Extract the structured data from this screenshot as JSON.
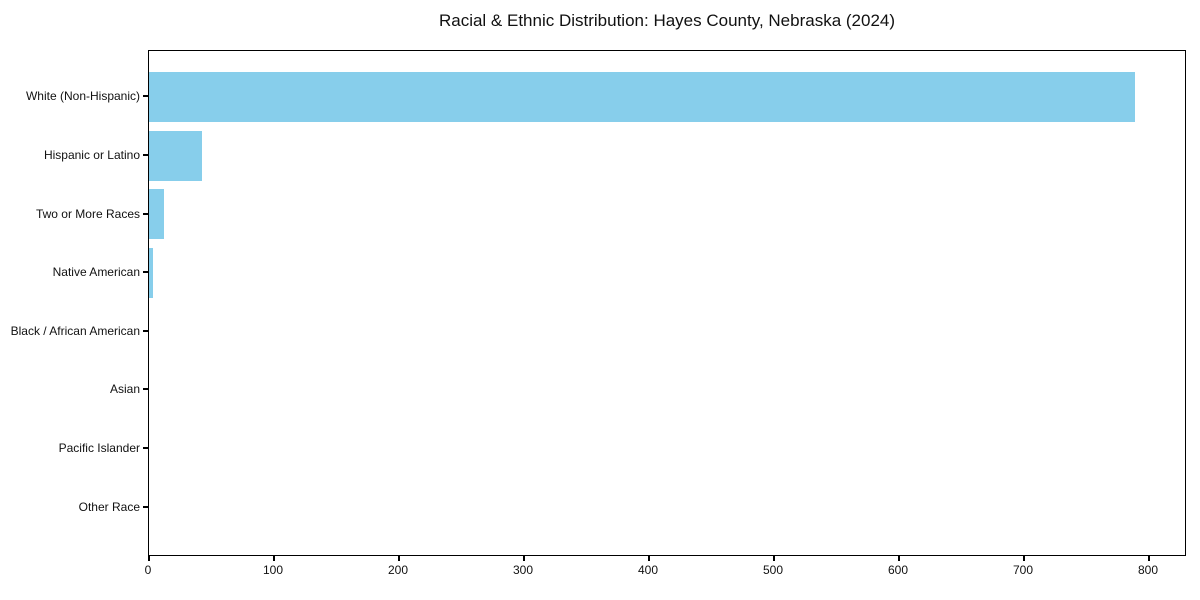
{
  "figure": {
    "background": "#ffffff"
  },
  "chart_data": {
    "type": "bar",
    "orientation": "horizontal",
    "title": "Racial & Ethnic Distribution: Hayes County, Nebraska (2024)",
    "categories": [
      "White (Non-Hispanic)",
      "Hispanic or Latino",
      "Two or More Races",
      "Native American",
      "Black / African American",
      "Asian",
      "Pacific Islander",
      "Other Race"
    ],
    "values": [
      789,
      42,
      12,
      3,
      0,
      0,
      0,
      0
    ],
    "xlabel": "",
    "ylabel": "",
    "xlim": [
      0,
      828
    ],
    "x_ticks": [
      0,
      100,
      200,
      300,
      400,
      500,
      600,
      700,
      800
    ],
    "bar_color": "#87CEEB",
    "spine_color": "#000000",
    "text_color": "#111111",
    "grid": false,
    "legend": null
  }
}
